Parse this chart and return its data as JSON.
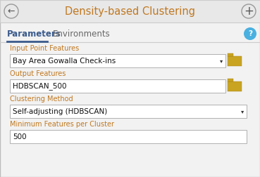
{
  "title": "Density-based Clustering",
  "title_color": "#c07820",
  "bg_color": "#f2f2f2",
  "header_bg": "#e8e8e8",
  "tab_active": "Parameters",
  "tab_inactive": "Environments",
  "tab_active_color": "#3a5a8c",
  "tab_inactive_color": "#666666",
  "tab_underline_color": "#3a5a8c",
  "label_color": "#c07820",
  "field_bg": "#ffffff",
  "field_border": "#b0b0b0",
  "field_text_color": "#111111",
  "fields": [
    {
      "label": "Input Point Features",
      "value": "Bay Area Gowalla Check-ins",
      "type": "dropdown",
      "has_folder": true
    },
    {
      "label": "Output Features",
      "value": "HDBSCAN_500",
      "type": "text",
      "has_folder": true
    },
    {
      "label": "Clustering Method",
      "value": "Self-adjusting (HDBSCAN)",
      "type": "dropdown",
      "has_folder": false
    },
    {
      "label": "Minimum Features per Cluster",
      "value": "500",
      "type": "text",
      "has_folder": false
    }
  ],
  "back_arrow": "←",
  "plus_sign": "+",
  "question_mark": "?",
  "folder_color": "#c8a422",
  "folder_dark": "#a88018",
  "circle_color": "#4ab0e0",
  "header_border_color": "#cccccc",
  "outer_bg": "#e8e8e8"
}
